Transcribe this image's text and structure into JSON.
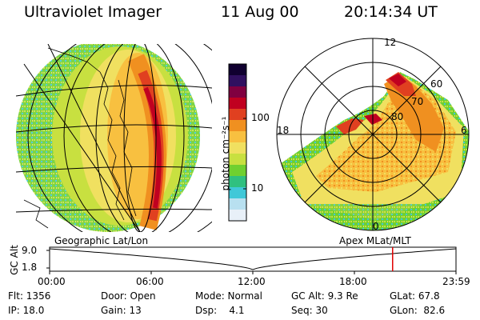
{
  "header": {
    "title": "Ultraviolet Imager",
    "date": "11 Aug 00",
    "time": "20:14:34 UT"
  },
  "colorbar": {
    "unit_label": "photon cm⁻²s⁻¹",
    "tick_100": "100",
    "tick_10": "10",
    "colors": [
      "#e8f0f8",
      "#b8e0f0",
      "#40c8d8",
      "#30c080",
      "#70d030",
      "#c8e040",
      "#f0e060",
      "#f8c040",
      "#f09020",
      "#e04020",
      "#c00020",
      "#800040",
      "#301060",
      "#100030"
    ]
  },
  "left_panel": {
    "label": "Geographic Lat/Lon"
  },
  "right_panel": {
    "label": "Apex MLat/MLT",
    "mlt_12": "12",
    "mlt_18": "18",
    "mlt_6": "6",
    "mlt_0": "0",
    "lat_60": "60",
    "lat_70": "70",
    "lat_80": "80"
  },
  "timeline": {
    "y_axis_label": "GC Alt",
    "y_max": "9.0",
    "y_min": "1.8",
    "ticks": [
      "00:00",
      "06:00",
      "12:00",
      "18:00",
      "23:59"
    ],
    "marker_color": "#e00000"
  },
  "info_rows": [
    [
      "Flt: 1356",
      "Door: Open",
      "Mode: Normal",
      "GC Alt: 9.3 Re",
      "GLat: 67.8"
    ],
    [
      "IP: 18.0",
      "Gain: 13",
      "Dsp:    4.1",
      "Seq: 30",
      "GLon:  82.6"
    ]
  ]
}
